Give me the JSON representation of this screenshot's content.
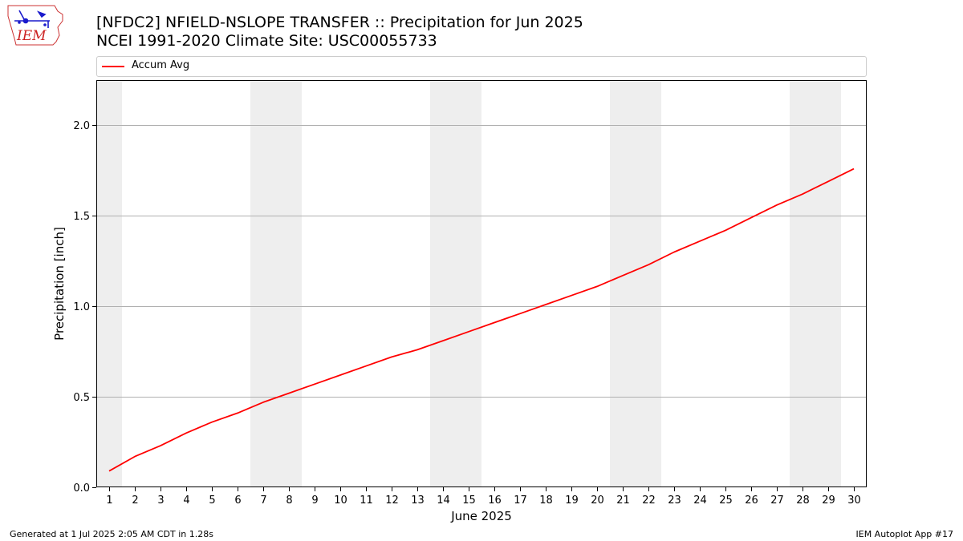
{
  "header": {
    "title_line1": "[NFDC2] NFIELD-NSLOPE TRANSFER :: Precipitation for Jun 2025",
    "title_line2": "NCEI 1991-2020 Climate Site: USC00055733"
  },
  "logo": {
    "text": "IEM"
  },
  "footer": {
    "left": "Generated at 1 Jul 2025 2:05 AM CDT in 1.28s",
    "right": "IEM Autoplot App #17"
  },
  "colors": {
    "series": "#ff0000",
    "weekend_band": "#eeeeee",
    "grid": "#b0b0b0"
  },
  "chart_data": {
    "type": "line",
    "xlabel": "June 2025",
    "ylabel": "Precipitation [inch]",
    "x": [
      1,
      2,
      3,
      4,
      5,
      6,
      7,
      8,
      9,
      10,
      11,
      12,
      13,
      14,
      15,
      16,
      17,
      18,
      19,
      20,
      21,
      22,
      23,
      24,
      25,
      26,
      27,
      28,
      29,
      30
    ],
    "xlim": [
      0.5,
      30.5
    ],
    "ylim": [
      0,
      2.25
    ],
    "yticks": [
      0.0,
      0.5,
      1.0,
      1.5,
      2.0
    ],
    "ytick_labels": [
      "0.0",
      "0.5",
      "1.0",
      "1.5",
      "2.0"
    ],
    "grid": "horizontal",
    "legend_position": "top",
    "shaded_days": [
      [
        1,
        1
      ],
      [
        7,
        8
      ],
      [
        14,
        15
      ],
      [
        21,
        22
      ],
      [
        28,
        29
      ]
    ],
    "series": [
      {
        "name": "Accum Avg",
        "values": [
          0.09,
          0.17,
          0.23,
          0.3,
          0.36,
          0.41,
          0.47,
          0.52,
          0.57,
          0.62,
          0.67,
          0.72,
          0.76,
          0.81,
          0.86,
          0.91,
          0.96,
          1.01,
          1.06,
          1.11,
          1.17,
          1.23,
          1.3,
          1.36,
          1.42,
          1.49,
          1.56,
          1.62,
          1.69,
          1.76
        ]
      }
    ]
  }
}
